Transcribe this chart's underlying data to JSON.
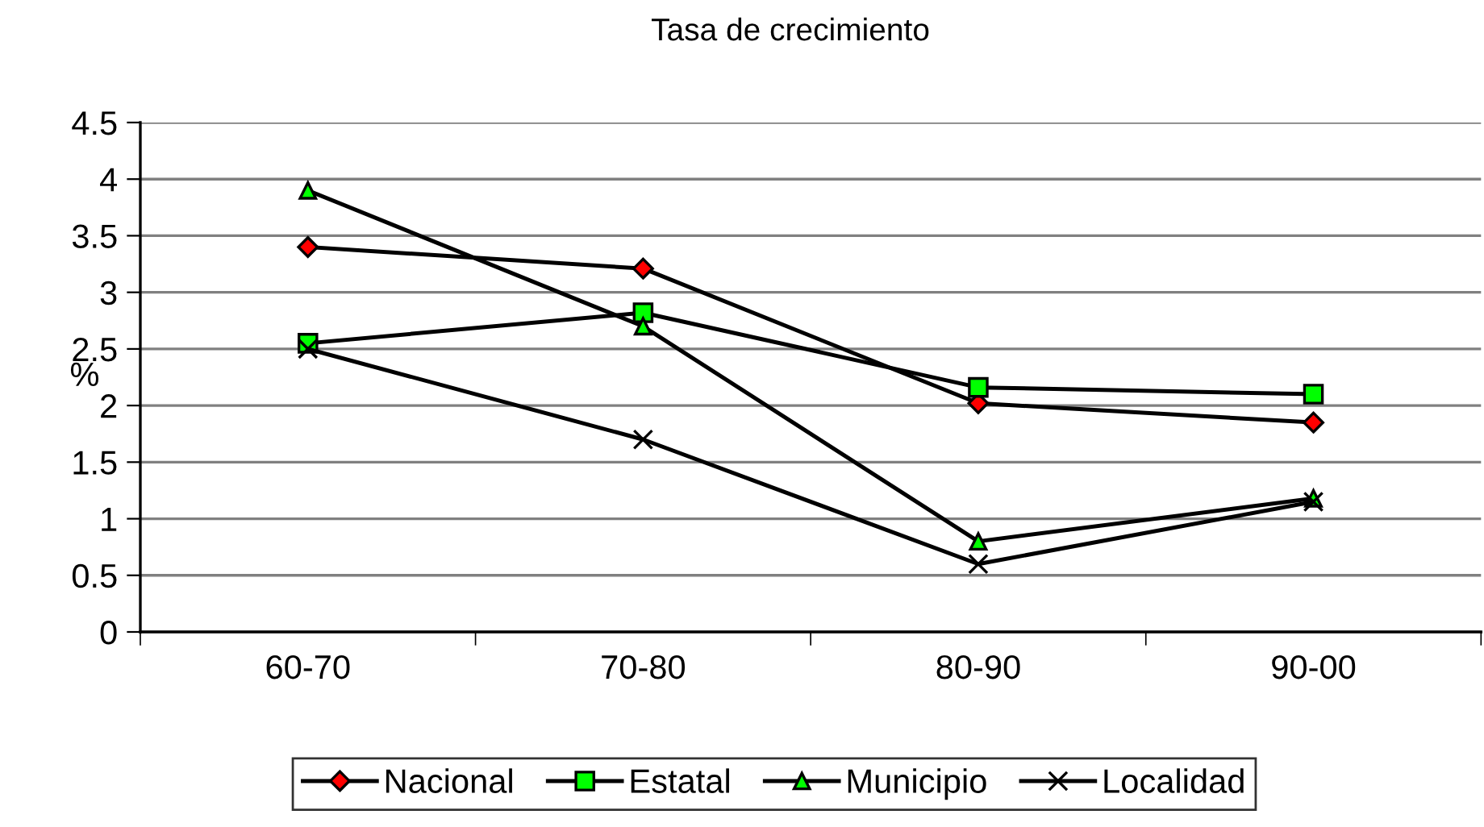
{
  "chart_data": {
    "type": "line",
    "title": "Tasa de crecimiento",
    "ylabel": "%",
    "categories": [
      "60-70",
      "70-80",
      "80-90",
      "90-00"
    ],
    "series": [
      {
        "name": "Nacional",
        "color": "#ff0000",
        "marker": "diamond",
        "values": [
          3.4,
          3.21,
          2.02,
          1.85
        ]
      },
      {
        "name": "Estatal",
        "color": "#00ff00",
        "marker": "square",
        "values": [
          2.55,
          2.82,
          2.16,
          2.1
        ]
      },
      {
        "name": "Municipio",
        "color": "#00ff00",
        "marker": "triangle",
        "values": [
          3.9,
          2.7,
          0.8,
          1.18
        ]
      },
      {
        "name": "Localidad",
        "color": "#000000",
        "marker": "cross",
        "values": [
          2.5,
          1.7,
          0.6,
          1.15
        ]
      }
    ],
    "ylim": [
      0,
      4.5
    ],
    "yticks": [
      0,
      0.5,
      1,
      1.5,
      2,
      2.5,
      3,
      3.5,
      4,
      4.5
    ],
    "grid": "y",
    "legend": "bottom"
  }
}
